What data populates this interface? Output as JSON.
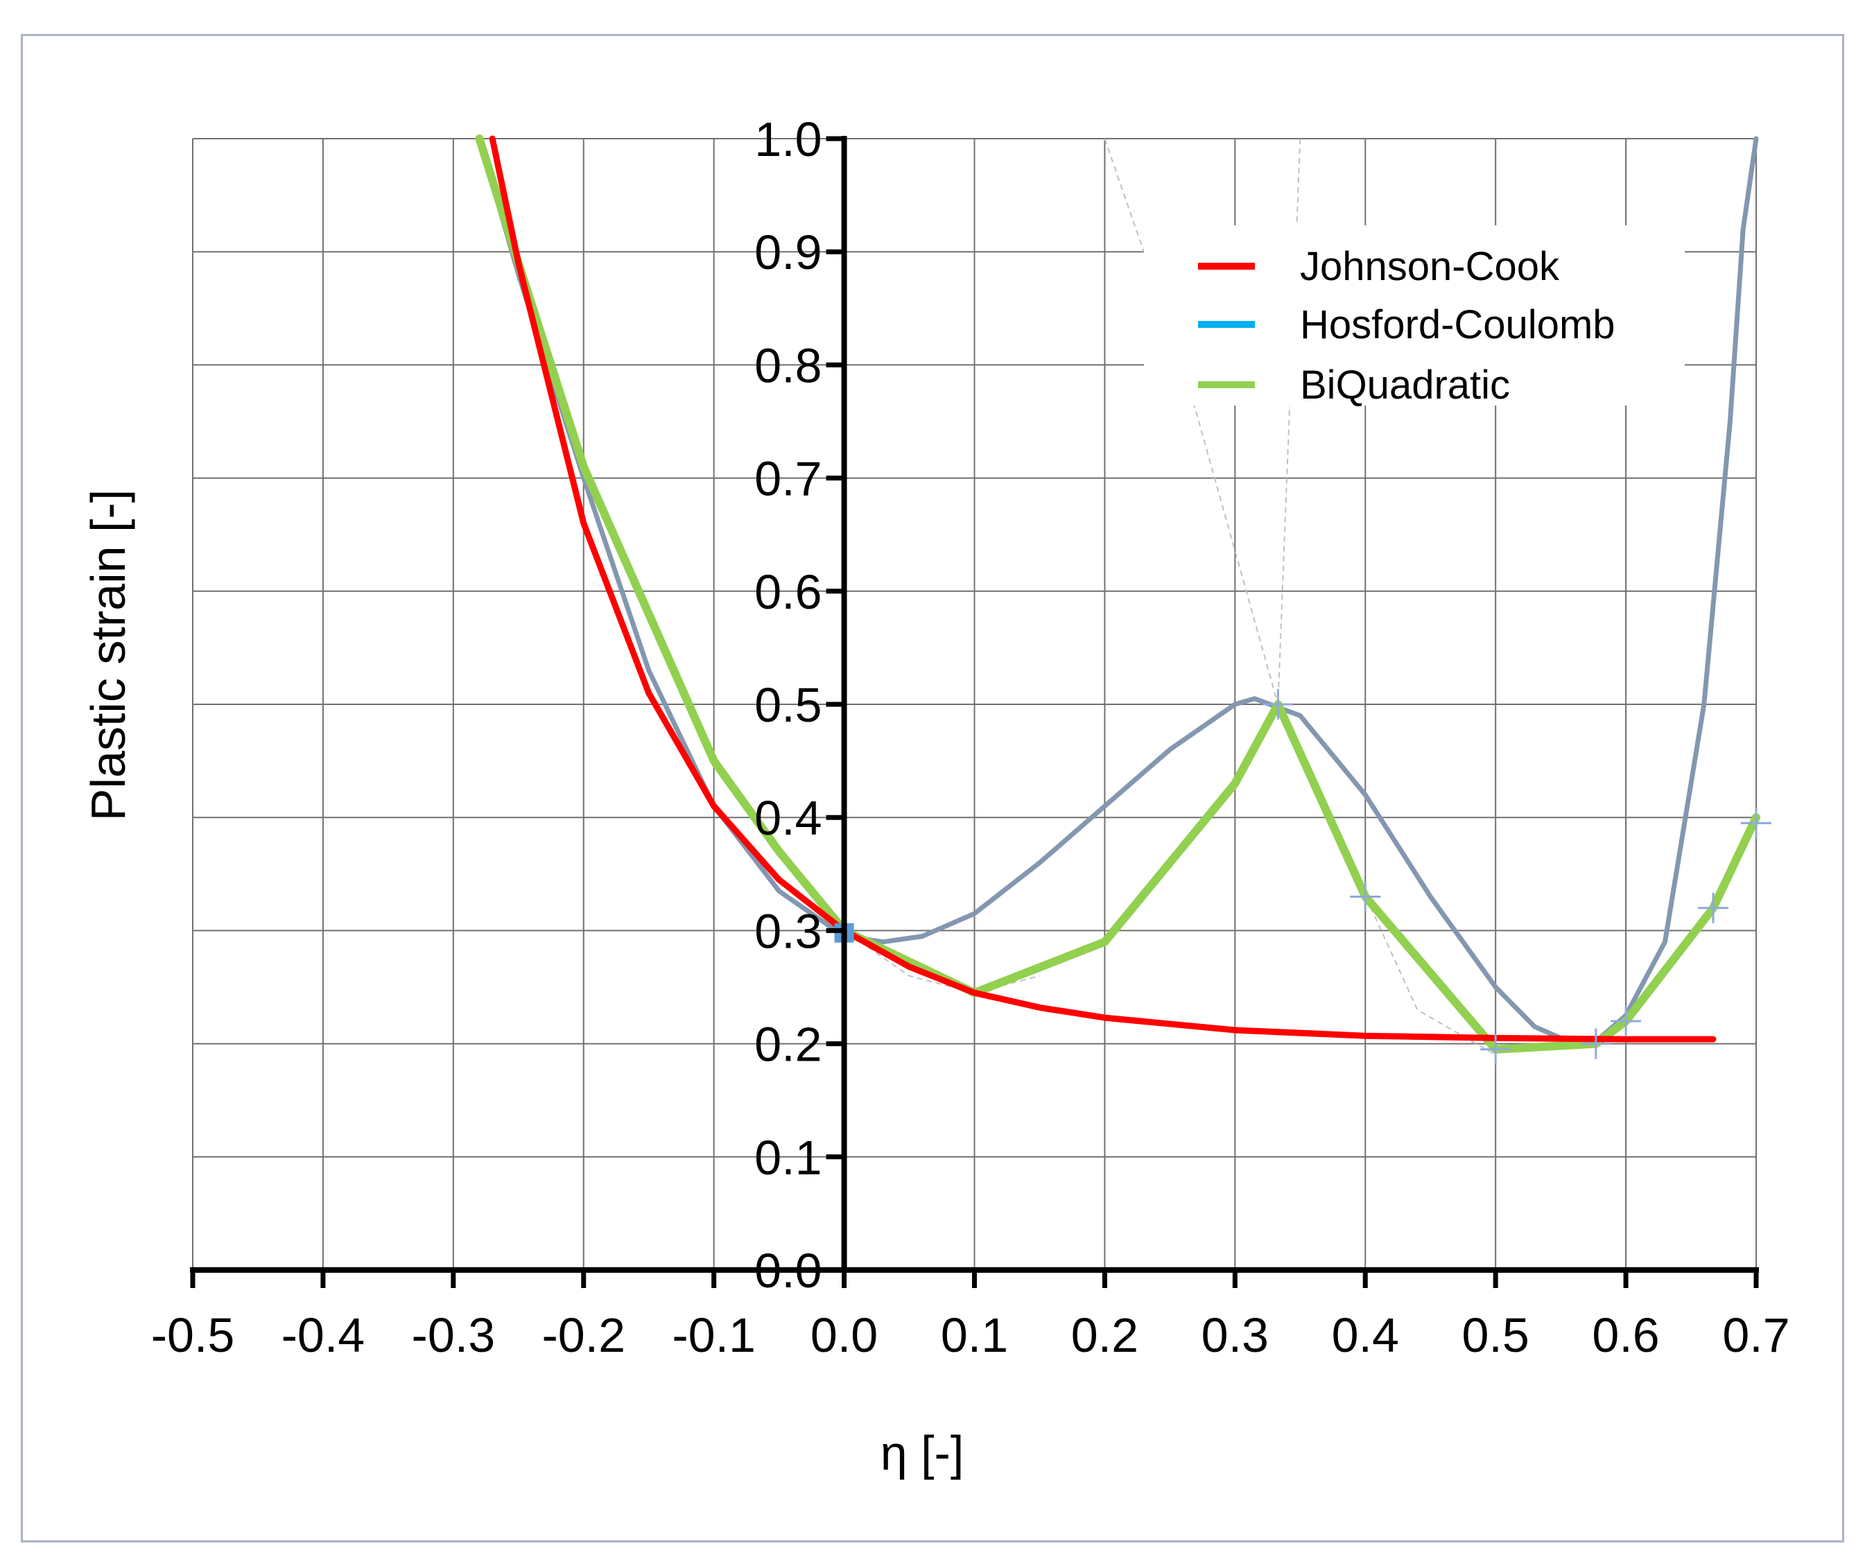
{
  "chart_data": {
    "type": "line",
    "xlabel": "η [-]",
    "ylabel": "Plastic strain [-]",
    "xlim": [
      -0.5,
      0.7
    ],
    "ylim": [
      0.0,
      1.0
    ],
    "x_ticks": [
      "-0.5",
      "-0.4",
      "-0.3",
      "-0.2",
      "-0.1",
      "0.0",
      "0.1",
      "0.2",
      "0.3",
      "0.4",
      "0.5",
      "0.6",
      "0.7"
    ],
    "y_ticks": [
      "0.0",
      "0.1",
      "0.2",
      "0.3",
      "0.4",
      "0.5",
      "0.6",
      "0.7",
      "0.8",
      "0.9",
      "1.0"
    ],
    "grid": true,
    "legend_position": "top-right",
    "legend": [
      {
        "name": "Johnson-Cook",
        "color": "#ff0000"
      },
      {
        "name": "Hosford-Coulomb",
        "color": "#00b0f0"
      },
      {
        "name": "BiQuadratic",
        "color": "#92d050"
      }
    ],
    "series": [
      {
        "name": "Johnson-Cook",
        "color": "#ff0000",
        "x": [
          -0.27,
          -0.25,
          -0.2,
          -0.15,
          -0.1,
          -0.05,
          0.0,
          0.05,
          0.1,
          0.15,
          0.2,
          0.3,
          0.4,
          0.5,
          0.6,
          0.667
        ],
        "y": [
          1.0,
          0.89,
          0.66,
          0.51,
          0.41,
          0.345,
          0.3,
          0.268,
          0.245,
          0.232,
          0.223,
          0.212,
          0.207,
          0.205,
          0.204,
          0.204
        ]
      },
      {
        "name": "BiQuadratic",
        "color": "#92d050",
        "x": [
          -0.28,
          -0.25,
          -0.2,
          -0.15,
          -0.1,
          -0.05,
          0.0,
          0.1,
          0.2,
          0.3,
          0.333,
          0.4,
          0.5,
          0.577,
          0.6,
          0.667,
          0.7
        ],
        "y": [
          1.0,
          0.89,
          0.71,
          0.58,
          0.45,
          0.37,
          0.3,
          0.245,
          0.29,
          0.43,
          0.5,
          0.33,
          0.195,
          0.2,
          0.22,
          0.32,
          0.4
        ]
      },
      {
        "name": "",
        "color": "#8497b0",
        "x": [
          -0.28,
          -0.25,
          -0.2,
          -0.15,
          -0.1,
          -0.05,
          0.0,
          0.03,
          0.06,
          0.1,
          0.15,
          0.2,
          0.25,
          0.3,
          0.315,
          0.35,
          0.4,
          0.45,
          0.5,
          0.53,
          0.56,
          0.58,
          0.6,
          0.63,
          0.66,
          0.68,
          0.69,
          0.7
        ],
        "y": [
          1.0,
          0.88,
          0.7,
          0.53,
          0.41,
          0.335,
          0.295,
          0.29,
          0.295,
          0.315,
          0.36,
          0.41,
          0.46,
          0.5,
          0.505,
          0.49,
          0.42,
          0.33,
          0.25,
          0.215,
          0.2,
          0.205,
          0.225,
          0.29,
          0.5,
          0.75,
          0.92,
          1.0
        ]
      }
    ]
  }
}
